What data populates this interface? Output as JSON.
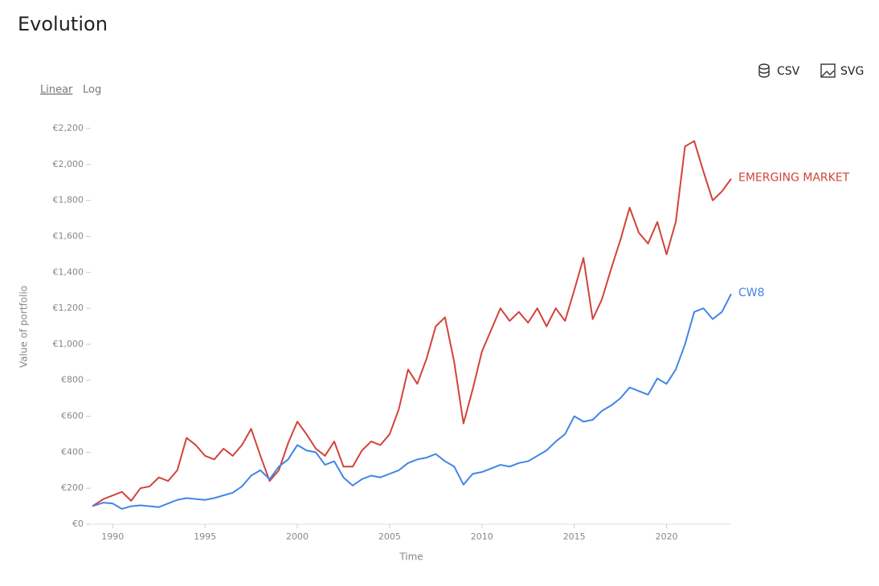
{
  "ui": {
    "title": "Evolution",
    "scale_options": [
      "Linear",
      "Log"
    ],
    "downloads": [
      "CSV",
      "SVG"
    ]
  },
  "chart_data": {
    "type": "line",
    "x_label": "Time",
    "y_label": "Value of portfolio",
    "x": [
      1988.9,
      1989.5,
      1990,
      1990.5,
      1991,
      1991.5,
      1992,
      1992.5,
      1993,
      1993.5,
      1994,
      1994.5,
      1995,
      1995.5,
      1996,
      1996.5,
      1997,
      1997.5,
      1998,
      1998.5,
      1999,
      1999.5,
      2000,
      2000.5,
      2001,
      2001.5,
      2002,
      2002.5,
      2003,
      2003.5,
      2004,
      2004.5,
      2005,
      2005.5,
      2006,
      2006.5,
      2007,
      2007.5,
      2008,
      2008.5,
      2009,
      2009.5,
      2010,
      2010.5,
      2011,
      2011.5,
      2012,
      2012.5,
      2013,
      2013.5,
      2014,
      2014.5,
      2015,
      2015.5,
      2016,
      2016.5,
      2017,
      2017.5,
      2018,
      2018.5,
      2019,
      2019.5,
      2020,
      2020.5,
      2021,
      2021.5,
      2022,
      2022.5,
      2023,
      2023.5
    ],
    "series": [
      {
        "name": "EMERGING MARKET",
        "color": "#d2433a",
        "values": [
          100,
          140,
          160,
          180,
          130,
          200,
          210,
          260,
          240,
          300,
          480,
          440,
          380,
          360,
          420,
          380,
          440,
          530,
          380,
          240,
          300,
          450,
          570,
          500,
          420,
          380,
          460,
          320,
          320,
          410,
          460,
          440,
          500,
          640,
          860,
          780,
          920,
          1100,
          1150,
          900,
          560,
          750,
          960,
          1080,
          1200,
          1130,
          1180,
          1120,
          1200,
          1100,
          1200,
          1130,
          1300,
          1480,
          1140,
          1250,
          1420,
          1580,
          1760,
          1620,
          1560,
          1680,
          1500,
          1680,
          2100,
          2130,
          1960,
          1800,
          1850,
          1920
        ]
      },
      {
        "name": "CW8",
        "color": "#4285e6",
        "values": [
          100,
          120,
          115,
          85,
          100,
          105,
          100,
          95,
          115,
          135,
          145,
          140,
          135,
          145,
          160,
          175,
          210,
          270,
          300,
          250,
          320,
          360,
          440,
          410,
          400,
          330,
          350,
          260,
          215,
          250,
          270,
          260,
          280,
          300,
          340,
          360,
          370,
          390,
          350,
          320,
          220,
          280,
          290,
          310,
          330,
          320,
          340,
          350,
          380,
          410,
          460,
          500,
          600,
          570,
          580,
          630,
          660,
          700,
          760,
          740,
          720,
          810,
          780,
          860,
          1000,
          1180,
          1200,
          1140,
          1180,
          1280
        ]
      }
    ],
    "xlim": [
      1988.9,
      2023.5
    ],
    "ylim": [
      0,
      2200
    ],
    "xticks": [
      1990,
      1995,
      2000,
      2005,
      2010,
      2015,
      2020
    ],
    "yticks": [
      {
        "value": 0,
        "label": "€0"
      },
      {
        "value": 200,
        "label": "€200"
      },
      {
        "value": 400,
        "label": "€400"
      },
      {
        "value": 600,
        "label": "€600"
      },
      {
        "value": 800,
        "label": "€800"
      },
      {
        "value": 1000,
        "label": "€1,000"
      },
      {
        "value": 1200,
        "label": "€1,200"
      },
      {
        "value": 1400,
        "label": "€1,400"
      },
      {
        "value": 1600,
        "label": "€1,600"
      },
      {
        "value": 1800,
        "label": "€1,800"
      },
      {
        "value": 2000,
        "label": "€2,000"
      },
      {
        "value": 2200,
        "label": "€2,200"
      }
    ],
    "log_scale": false
  }
}
